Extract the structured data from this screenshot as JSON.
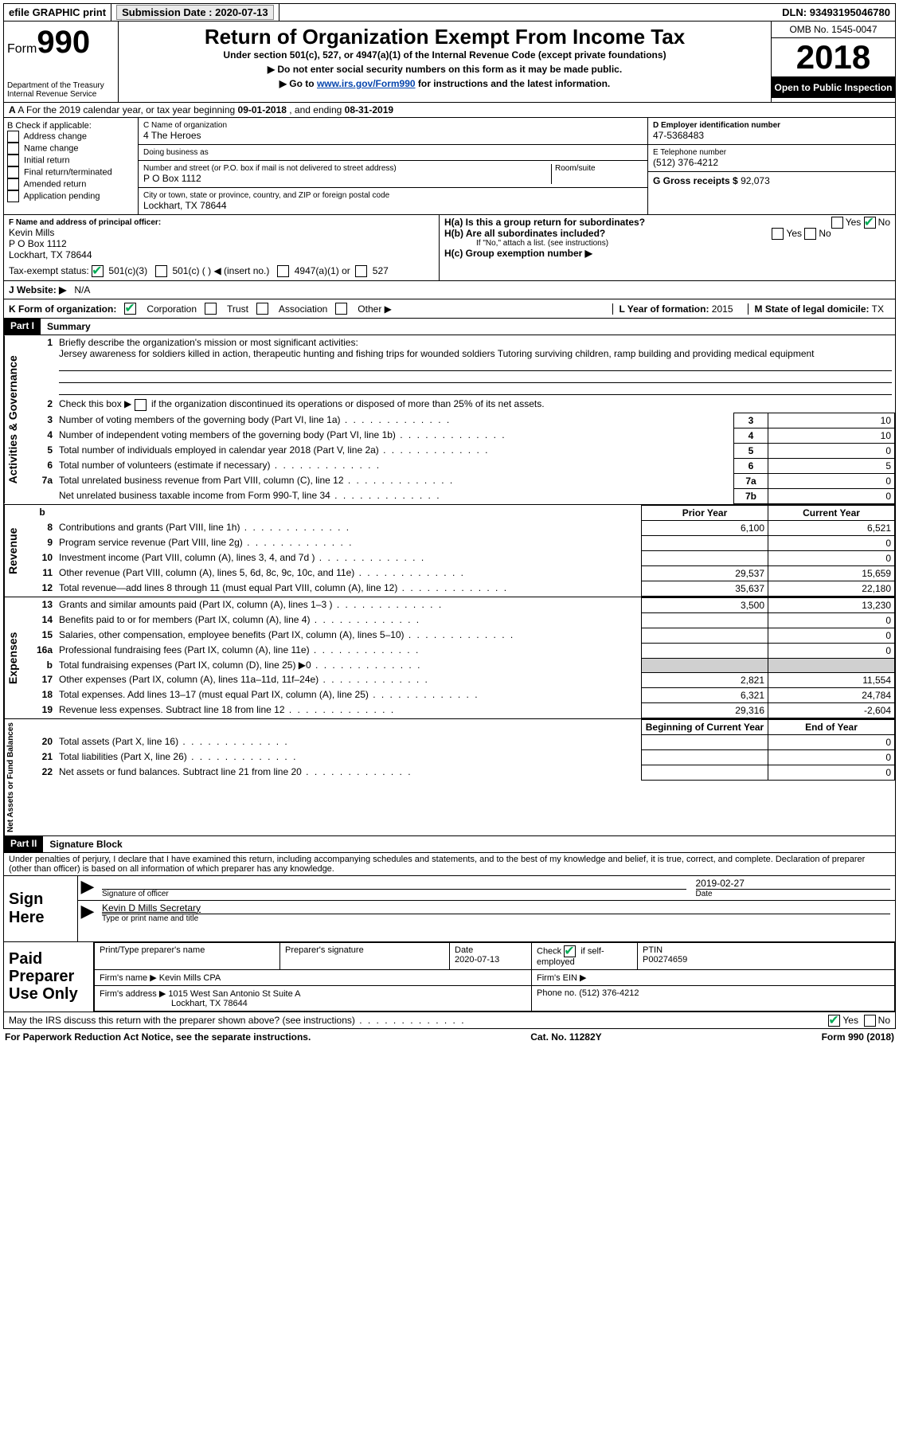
{
  "topbar": {
    "efile": "efile GRAPHIC print",
    "submission_label": "Submission Date :",
    "submission_date": "2020-07-13",
    "dln_label": "DLN:",
    "dln": "93493195046780"
  },
  "header": {
    "form_word": "Form",
    "form_no": "990",
    "dept": "Department of the Treasury",
    "irs": "Internal Revenue Service",
    "title": "Return of Organization Exempt From Income Tax",
    "sub1": "Under section 501(c), 527, or 4947(a)(1) of the Internal Revenue Code (except private foundations)",
    "sub2": "▶ Do not enter social security numbers on this form as it may be made public.",
    "sub3_a": "▶ Go to ",
    "sub3_link": "www.irs.gov/Form990",
    "sub3_b": " for instructions and the latest information.",
    "omb_label": "OMB No. 1545-0047",
    "year": "2018",
    "open": "Open to Public Inspection"
  },
  "rowA": {
    "text_a": "A For the 2019 calendar year, or tax year beginning ",
    "begin": "09-01-2018",
    "text_b": " , and ending ",
    "end": "08-31-2019"
  },
  "B": {
    "label": "B Check if applicable:",
    "opts": [
      "Address change",
      "Name change",
      "Initial return",
      "Final return/terminated",
      "Amended return",
      "Application pending"
    ]
  },
  "C": {
    "name_lbl": "C Name of organization",
    "name": "4 The Heroes",
    "dba_lbl": "Doing business as",
    "addr_lbl": "Number and street (or P.O. box if mail is not delivered to street address)",
    "room_lbl": "Room/suite",
    "addr": "P O Box 1112",
    "city_lbl": "City or town, state or province, country, and ZIP or foreign postal code",
    "city": "Lockhart, TX  78644"
  },
  "D": {
    "lbl": "D Employer identification number",
    "val": "47-5368483"
  },
  "E": {
    "lbl": "E Telephone number",
    "val": "(512) 376-4212"
  },
  "G": {
    "lbl": "G Gross receipts $",
    "val": "92,073"
  },
  "F": {
    "lbl": "F  Name and address of principal officer:",
    "name": "Kevin Mills",
    "addr1": "P O Box 1112",
    "addr2": "Lockhart, TX  78644"
  },
  "H": {
    "a": "H(a)  Is this a group return for subordinates?",
    "b": "H(b)  Are all subordinates included?",
    "b_note": "If \"No,\" attach a list. (see instructions)",
    "c": "H(c)  Group exemption number ▶",
    "yes": "Yes",
    "no": "No"
  },
  "I": {
    "lbl": "Tax-exempt status:",
    "o1": "501(c)(3)",
    "o2": "501(c) (  ) ◀ (insert no.)",
    "o3": "4947(a)(1) or",
    "o4": "527"
  },
  "J": {
    "lbl": "J   Website: ▶",
    "val": "N/A"
  },
  "K": {
    "lbl": "K Form of organization:",
    "o1": "Corporation",
    "o2": "Trust",
    "o3": "Association",
    "o4": "Other ▶"
  },
  "L": {
    "lbl": "L Year of formation:",
    "val": "2015"
  },
  "M": {
    "lbl": "M State of legal domicile:",
    "val": "TX"
  },
  "part1": {
    "hdr": "Part I",
    "title": "Summary",
    "l1_lbl": "Briefly describe the organization's mission or most significant activities:",
    "l1_txt": "Jersey awareness for soldiers killed in action, therapeutic hunting and fishing trips for wounded soldiers Tutoring surviving children, ramp building and providing medical equipment",
    "l2": "Check this box ▶        if the organization discontinued its operations or disposed of more than 25% of its net assets.",
    "lines_ag": [
      {
        "n": "3",
        "d": "Number of voting members of the governing body (Part VI, line 1a)",
        "b": "3",
        "v": "10"
      },
      {
        "n": "4",
        "d": "Number of independent voting members of the governing body (Part VI, line 1b)",
        "b": "4",
        "v": "10"
      },
      {
        "n": "5",
        "d": "Total number of individuals employed in calendar year 2018 (Part V, line 2a)",
        "b": "5",
        "v": "0"
      },
      {
        "n": "6",
        "d": "Total number of volunteers (estimate if necessary)",
        "b": "6",
        "v": "5"
      },
      {
        "n": "7a",
        "d": "Total unrelated business revenue from Part VIII, column (C), line 12",
        "b": "7a",
        "v": "0"
      },
      {
        "n": "",
        "d": "Net unrelated business taxable income from Form 990-T, line 34",
        "b": "7b",
        "v": "0"
      }
    ],
    "py": "Prior Year",
    "cy": "Current Year",
    "rev": [
      {
        "n": "8",
        "d": "Contributions and grants (Part VIII, line 1h)",
        "p": "6,100",
        "c": "6,521"
      },
      {
        "n": "9",
        "d": "Program service revenue (Part VIII, line 2g)",
        "p": "",
        "c": "0"
      },
      {
        "n": "10",
        "d": "Investment income (Part VIII, column (A), lines 3, 4, and 7d )",
        "p": "",
        "c": "0"
      },
      {
        "n": "11",
        "d": "Other revenue (Part VIII, column (A), lines 5, 6d, 8c, 9c, 10c, and 11e)",
        "p": "29,537",
        "c": "15,659"
      },
      {
        "n": "12",
        "d": "Total revenue—add lines 8 through 11 (must equal Part VIII, column (A), line 12)",
        "p": "35,637",
        "c": "22,180"
      }
    ],
    "exp": [
      {
        "n": "13",
        "d": "Grants and similar amounts paid (Part IX, column (A), lines 1–3 )",
        "p": "3,500",
        "c": "13,230"
      },
      {
        "n": "14",
        "d": "Benefits paid to or for members (Part IX, column (A), line 4)",
        "p": "",
        "c": "0"
      },
      {
        "n": "15",
        "d": "Salaries, other compensation, employee benefits (Part IX, column (A), lines 5–10)",
        "p": "",
        "c": "0"
      },
      {
        "n": "16a",
        "d": "Professional fundraising fees (Part IX, column (A), line 11e)",
        "p": "",
        "c": "0"
      },
      {
        "n": "b",
        "d": "Total fundraising expenses (Part IX, column (D), line 25) ▶0",
        "p": "shade",
        "c": "shade"
      },
      {
        "n": "17",
        "d": "Other expenses (Part IX, column (A), lines 11a–11d, 11f–24e)",
        "p": "2,821",
        "c": "11,554"
      },
      {
        "n": "18",
        "d": "Total expenses. Add lines 13–17 (must equal Part IX, column (A), line 25)",
        "p": "6,321",
        "c": "24,784"
      },
      {
        "n": "19",
        "d": "Revenue less expenses. Subtract line 18 from line 12",
        "p": "29,316",
        "c": "-2,604"
      }
    ],
    "bcy": "Beginning of Current Year",
    "eoy": "End of Year",
    "na": [
      {
        "n": "20",
        "d": "Total assets (Part X, line 16)",
        "p": "",
        "c": "0"
      },
      {
        "n": "21",
        "d": "Total liabilities (Part X, line 26)",
        "p": "",
        "c": "0"
      },
      {
        "n": "22",
        "d": "Net assets or fund balances. Subtract line 21 from line 20",
        "p": "",
        "c": "0"
      }
    ],
    "sideA": "Activities & Governance",
    "sideR": "Revenue",
    "sideE": "Expenses",
    "sideN": "Net Assets or Fund Balances"
  },
  "part2": {
    "hdr": "Part II",
    "title": "Signature Block",
    "decl": "Under penalties of perjury, I declare that I have examined this return, including accompanying schedules and statements, and to the best of my knowledge and belief, it is true, correct, and complete. Declaration of preparer (other than officer) is based on all information of which preparer has any knowledge."
  },
  "sign": {
    "here": "Sign Here",
    "sig_lbl": "Signature of officer",
    "date_lbl": "Date",
    "date": "2019-02-27",
    "name": "Kevin D Mills  Secretary",
    "name_lbl": "Type or print name and title"
  },
  "prep": {
    "left": "Paid Preparer Use Only",
    "c1": "Print/Type preparer's name",
    "c2": "Preparer's signature",
    "c3": "Date",
    "c3v": "2020-07-13",
    "c4a": "Check",
    "c4b": "if self-employed",
    "c5": "PTIN",
    "c5v": "P00274659",
    "firm_lbl": "Firm's name   ▶",
    "firm": "Kevin Mills CPA",
    "ein_lbl": "Firm's EIN ▶",
    "addr_lbl": "Firm's address ▶",
    "addr1": "1015 West San Antonio St Suite A",
    "addr2": "Lockhart, TX  78644",
    "phone_lbl": "Phone no.",
    "phone": "(512) 376-4212",
    "discuss": "May the IRS discuss this return with the preparer shown above? (see instructions)"
  },
  "footer": {
    "l": "For Paperwork Reduction Act Notice, see the separate instructions.",
    "c": "Cat. No. 11282Y",
    "r": "Form 990 (2018)"
  }
}
